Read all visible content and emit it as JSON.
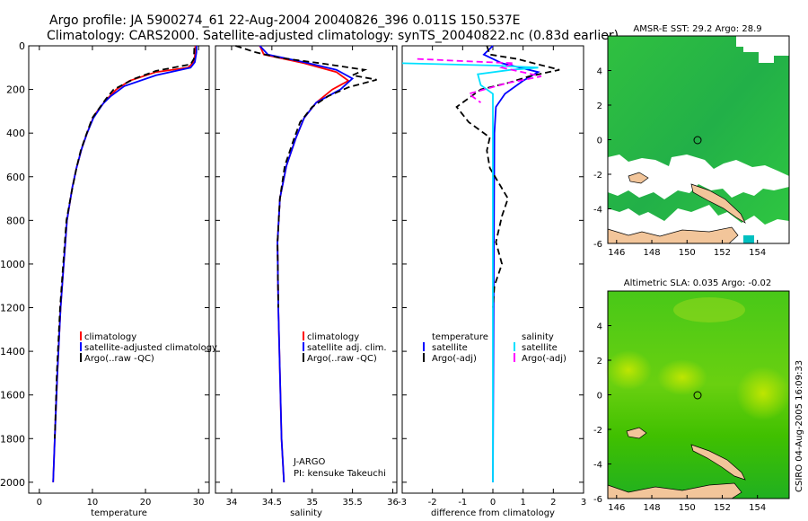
{
  "header": {
    "line1": "Argo profile: JA 5900274_61 22-Aug-2004 20040826_396 0.011S 150.537E",
    "line2": "Climatology: CARS2000. Satellite-adjusted climatology: synTS_20040822.nc (0.83d earlier)"
  },
  "footer": {
    "credit": "CSIRO 04-Aug-2005 16:09:33"
  },
  "colors": {
    "red": "#ff0000",
    "blue": "#0000ff",
    "black": "#000000",
    "cyan": "#00e0ff",
    "magenta": "#ff00ff",
    "sea": "#3cd000",
    "land": "#f0c090"
  },
  "chart_data": [
    {
      "id": "temperature",
      "type": "line",
      "xlabel": "temperature",
      "xlim": [
        -2,
        32
      ],
      "ylim": [
        0,
        2050
      ],
      "xticks": [
        0,
        10,
        20,
        30
      ],
      "yticks": [
        0,
        200,
        400,
        600,
        800,
        1000,
        1200,
        1400,
        1600,
        1800,
        2000
      ],
      "legend": [
        "climatology",
        "satellite-adjusted climatology",
        "Argo(..raw -QC)"
      ],
      "series": [
        {
          "name": "climatology",
          "color": "red",
          "dash": false,
          "points": [
            [
              29.4,
              0
            ],
            [
              29.4,
              30
            ],
            [
              29.1,
              75
            ],
            [
              28,
              100
            ],
            [
              22,
              120
            ],
            [
              17,
              160
            ],
            [
              14.5,
              200
            ],
            [
              12.5,
              250
            ],
            [
              10.3,
              320
            ],
            [
              9,
              400
            ],
            [
              8,
              470
            ],
            [
              7,
              560
            ],
            [
              6.2,
              650
            ],
            [
              5.2,
              800
            ],
            [
              4.6,
              1000
            ],
            [
              4,
              1200
            ],
            [
              3.4,
              1500
            ],
            [
              2.9,
              1800
            ],
            [
              2.6,
              2000
            ]
          ]
        },
        {
          "name": "satellite-adjusted climatology",
          "color": "blue",
          "dash": false,
          "points": [
            [
              29.6,
              0
            ],
            [
              29.6,
              30
            ],
            [
              29.3,
              75
            ],
            [
              28.5,
              100
            ],
            [
              22,
              135
            ],
            [
              16,
              185
            ],
            [
              13.5,
              230
            ],
            [
              12,
              265
            ],
            [
              10.2,
              330
            ],
            [
              9,
              400
            ],
            [
              8,
              470
            ],
            [
              7,
              560
            ],
            [
              6.2,
              650
            ],
            [
              5.2,
              800
            ],
            [
              4.6,
              1000
            ],
            [
              4,
              1200
            ],
            [
              3.4,
              1500
            ],
            [
              2.9,
              1800
            ],
            [
              2.6,
              2000
            ]
          ]
        },
        {
          "name": "Argo(..raw -QC)",
          "color": "black",
          "dash": true,
          "points": [
            [
              29.2,
              10
            ],
            [
              29.1,
              60
            ],
            [
              28.5,
              85
            ],
            [
              22,
              115
            ],
            [
              18,
              150
            ],
            [
              14,
              200
            ],
            [
              12.5,
              245
            ],
            [
              10,
              330
            ],
            [
              8.8,
              410
            ],
            [
              7.8,
              480
            ],
            [
              7,
              560
            ],
            [
              6,
              680
            ],
            [
              5.1,
              800
            ],
            [
              4.5,
              1000
            ],
            [
              3.9,
              1200
            ],
            [
              3.3,
              1500
            ],
            [
              2.9,
              1800
            ]
          ]
        }
      ]
    },
    {
      "id": "salinity",
      "type": "line",
      "xlabel": "salinity",
      "xlim": [
        33.8,
        36.05
      ],
      "ylim": [
        0,
        2050
      ],
      "xticks": [
        34,
        34.5,
        35,
        35.5,
        36
      ],
      "legend": [
        "climatology",
        "satellite adj. clim.",
        "Argo(..raw -QC)"
      ],
      "annotations": [
        "J-ARGO",
        "PI: kensuke Takeuchi"
      ],
      "series": [
        {
          "name": "climatology",
          "color": "red",
          "dash": false,
          "points": [
            [
              34.35,
              0
            ],
            [
              34.4,
              40
            ],
            [
              34.9,
              80
            ],
            [
              35.3,
              120
            ],
            [
              35.45,
              160
            ],
            [
              35.25,
              200
            ],
            [
              35.05,
              260
            ],
            [
              34.9,
              330
            ],
            [
              34.8,
              420
            ],
            [
              34.68,
              550
            ],
            [
              34.6,
              700
            ],
            [
              34.57,
              900
            ],
            [
              34.58,
              1200
            ],
            [
              34.6,
              1500
            ],
            [
              34.62,
              1800
            ],
            [
              34.65,
              2000
            ]
          ]
        },
        {
          "name": "satellite adj. clim.",
          "color": "blue",
          "dash": false,
          "points": [
            [
              34.35,
              0
            ],
            [
              34.45,
              40
            ],
            [
              34.9,
              75
            ],
            [
              35.3,
              110
            ],
            [
              35.5,
              150
            ],
            [
              35.35,
              200
            ],
            [
              35.05,
              260
            ],
            [
              34.9,
              330
            ],
            [
              34.8,
              420
            ],
            [
              34.68,
              550
            ],
            [
              34.6,
              700
            ],
            [
              34.57,
              900
            ],
            [
              34.58,
              1200
            ],
            [
              34.6,
              1500
            ],
            [
              34.62,
              1800
            ],
            [
              34.65,
              2000
            ]
          ]
        },
        {
          "name": "Argo(..raw -QC)",
          "color": "black",
          "dash": true,
          "points": [
            [
              34.05,
              0
            ],
            [
              34.3,
              30
            ],
            [
              34.6,
              55
            ],
            [
              35.1,
              80
            ],
            [
              35.65,
              110
            ],
            [
              35.5,
              135
            ],
            [
              35.8,
              155
            ],
            [
              35.45,
              190
            ],
            [
              35.2,
              230
            ],
            [
              35,
              280
            ],
            [
              34.85,
              350
            ],
            [
              34.78,
              420
            ],
            [
              34.66,
              550
            ],
            [
              34.6,
              700
            ],
            [
              34.57,
              900
            ],
            [
              34.58,
              1200
            ]
          ]
        }
      ]
    },
    {
      "id": "difference",
      "type": "line",
      "xlabel": "difference from climatology",
      "xlim": [
        -3,
        3
      ],
      "ylim": [
        0,
        2050
      ],
      "xticks": [
        -3,
        -2,
        -1,
        0,
        1,
        2,
        3
      ],
      "legend_left": [
        "temperature",
        "satellite",
        "Argo(-adj)"
      ],
      "legend_right": [
        "salinity",
        "satellite",
        "Argo(-adj)"
      ],
      "series": [
        {
          "name": "temperature satellite",
          "color": "blue",
          "dash": false,
          "points": [
            [
              0,
              0
            ],
            [
              -0.3,
              40
            ],
            [
              0.3,
              80
            ],
            [
              1.5,
              120
            ],
            [
              1,
              160
            ],
            [
              0.4,
              220
            ],
            [
              0.1,
              280
            ],
            [
              0.05,
              400
            ],
            [
              0,
              2000
            ]
          ]
        },
        {
          "name": "temperature Argo(-adj)",
          "color": "black",
          "dash": true,
          "points": [
            [
              -0.2,
              0
            ],
            [
              -0.1,
              40
            ],
            [
              0.8,
              60
            ],
            [
              2.2,
              110
            ],
            [
              1.2,
              140
            ],
            [
              0.5,
              170
            ],
            [
              -0.4,
              200
            ],
            [
              -1.2,
              280
            ],
            [
              -0.8,
              350
            ],
            [
              -0.1,
              420
            ],
            [
              -0.2,
              480
            ],
            [
              -0.1,
              560
            ],
            [
              0.5,
              700
            ],
            [
              0.3,
              780
            ],
            [
              0.1,
              900
            ],
            [
              0.3,
              1000
            ],
            [
              0.05,
              1100
            ],
            [
              0,
              1200
            ]
          ]
        },
        {
          "name": "salinity satellite",
          "color": "cyan",
          "dash": false,
          "points": [
            [
              -3,
              80
            ],
            [
              0,
              90
            ],
            [
              1.5,
              100
            ],
            [
              0.6,
              110
            ],
            [
              -0.5,
              130
            ],
            [
              -0.4,
              180
            ],
            [
              0,
              220
            ],
            [
              0,
              2000
            ]
          ]
        },
        {
          "name": "salinity Argo(-adj)",
          "color": "magenta",
          "dash": true,
          "points": [
            [
              -2.5,
              60
            ],
            [
              -1,
              70
            ],
            [
              0.7,
              80
            ],
            [
              0.3,
              100
            ],
            [
              1.6,
              140
            ],
            [
              0.5,
              170
            ],
            [
              -0.8,
              220
            ],
            [
              -0.4,
              260
            ]
          ]
        }
      ]
    },
    {
      "id": "sst-map",
      "type": "heatmap",
      "title": "AMSR-E SST: 29.2  Argo: 28.9",
      "xlim": [
        145.5,
        155.8
      ],
      "ylim": [
        -6,
        6
      ],
      "xticks": [
        146,
        148,
        150,
        152,
        154
      ],
      "yticks": [
        -6,
        -4,
        -2,
        0,
        2,
        4
      ],
      "marker": [
        150.537,
        -0.011
      ]
    },
    {
      "id": "sla-map",
      "type": "heatmap",
      "title": "Altimetric SLA: 0.035  Argo: -0.02",
      "xlim": [
        145.5,
        155.8
      ],
      "ylim": [
        -6,
        6
      ],
      "xticks": [
        146,
        148,
        150,
        152,
        154
      ],
      "yticks": [
        -6,
        -4,
        -2,
        0,
        2,
        4
      ],
      "marker": [
        150.537,
        -0.011
      ]
    }
  ]
}
